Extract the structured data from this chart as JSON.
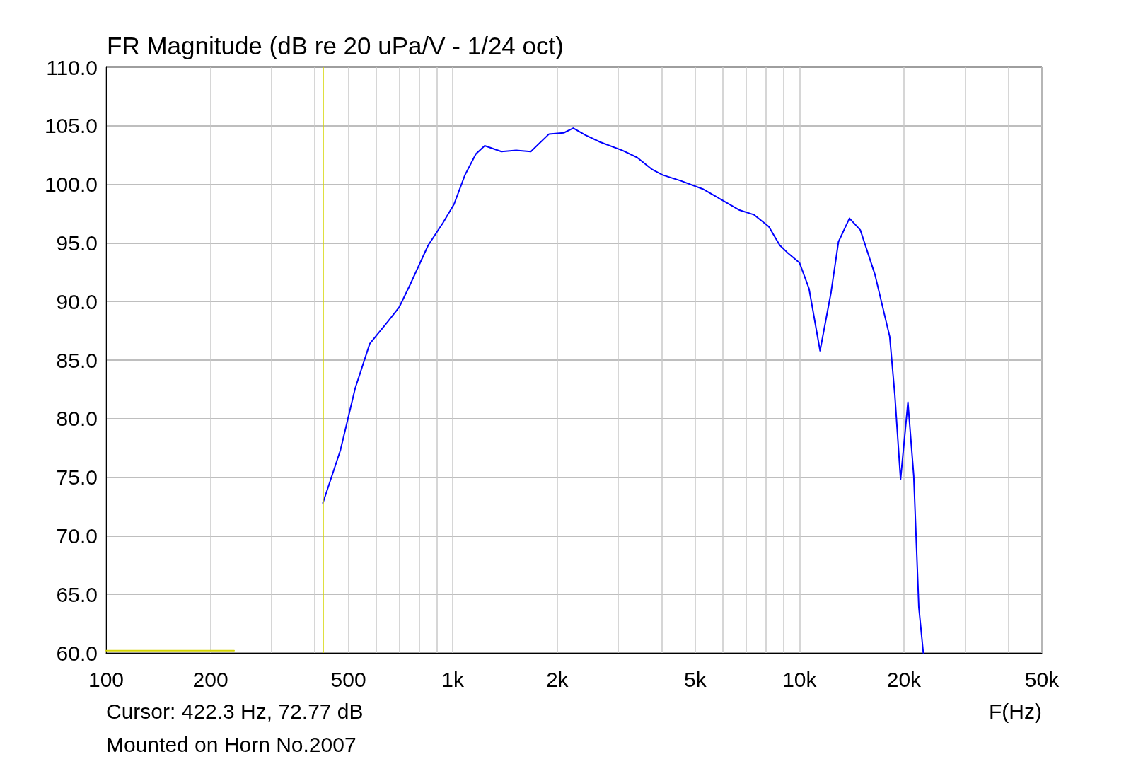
{
  "chart_data": {
    "type": "line",
    "title": "FR Magnitude (dB re 20 uPa/V - 1/24 oct)",
    "xlabel": "F(Hz)",
    "annotations": [
      "Cursor: 422.3 Hz, 72.77 dB",
      "Mounted on Horn No.2007"
    ],
    "log": "x",
    "grid": true,
    "marker": "none",
    "line_style": "solid",
    "xlim": [
      100,
      50000
    ],
    "xticks": [
      100,
      200,
      {
        "value": 300,
        "label": null
      },
      {
        "value": 400,
        "label": null
      },
      500,
      {
        "value": 600,
        "label": null
      },
      {
        "value": 700,
        "label": null
      },
      {
        "value": 800,
        "label": null
      },
      {
        "value": 900,
        "label": null
      },
      {
        "value": 1000,
        "label": "1k"
      },
      {
        "value": 2000,
        "label": "2k"
      },
      {
        "value": 3000,
        "label": null
      },
      {
        "value": 4000,
        "label": null
      },
      {
        "value": 5000,
        "label": "5k"
      },
      {
        "value": 6000,
        "label": null
      },
      {
        "value": 7000,
        "label": null
      },
      {
        "value": 8000,
        "label": null
      },
      {
        "value": 9000,
        "label": null
      },
      {
        "value": 10000,
        "label": "10k"
      },
      {
        "value": 20000,
        "label": "20k"
      },
      {
        "value": 30000,
        "label": null
      },
      {
        "value": 40000,
        "label": null
      },
      {
        "value": 50000,
        "label": "50k"
      }
    ],
    "ylim": [
      60,
      110
    ],
    "yticks": [
      {
        "value": 60,
        "label": "60.0"
      },
      {
        "value": 65,
        "label": "65.0"
      },
      {
        "value": 70,
        "label": "70.0"
      },
      {
        "value": 75,
        "label": "75.0"
      },
      {
        "value": 80,
        "label": "80.0"
      },
      {
        "value": 85,
        "label": "85.0"
      },
      {
        "value": 90,
        "label": "90.0"
      },
      {
        "value": 95,
        "label": "95.0"
      },
      {
        "value": 100,
        "label": "100.0"
      },
      {
        "value": 105,
        "label": "105.0"
      },
      {
        "value": 110,
        "label": "110.0"
      }
    ],
    "ref_lines": [
      {
        "axis": "x",
        "value": 422.3,
        "color": "#d4d400"
      }
    ],
    "series": [
      {
        "color": "#0000ff",
        "x": [
          422,
          474,
          523,
          576,
          650,
          700,
          752,
          849,
          936,
          1008,
          1084,
          1166,
          1236,
          1381,
          1523,
          1679,
          1895,
          2089,
          2225,
          2416,
          2665,
          3084,
          3398,
          3744,
          4030,
          4550,
          5261,
          5943,
          6713,
          7396,
          8150,
          8770,
          9206,
          10000,
          10650,
          11460,
          12330,
          12950,
          13930,
          14970,
          16500,
          18200,
          18830,
          19560,
          20540,
          21350,
          22080,
          22750
        ],
        "values": [
          72.8,
          77.3,
          82.6,
          86.4,
          88.3,
          89.5,
          91.4,
          94.8,
          96.7,
          98.3,
          100.8,
          102.6,
          103.3,
          102.8,
          102.9,
          102.8,
          104.3,
          104.4,
          104.8,
          104.2,
          103.6,
          102.9,
          102.3,
          101.3,
          100.8,
          100.3,
          99.6,
          98.7,
          97.8,
          97.4,
          96.4,
          94.8,
          94.2,
          93.3,
          91.1,
          85.8,
          90.8,
          95.1,
          97.1,
          96.1,
          92.3,
          87.0,
          82.0,
          74.8,
          81.4,
          75.1,
          63.9,
          60.0
        ]
      },
      {
        "color": "#d4d400",
        "x": [
          100,
          234
        ],
        "values": [
          60.2,
          60.2
        ]
      }
    ]
  }
}
